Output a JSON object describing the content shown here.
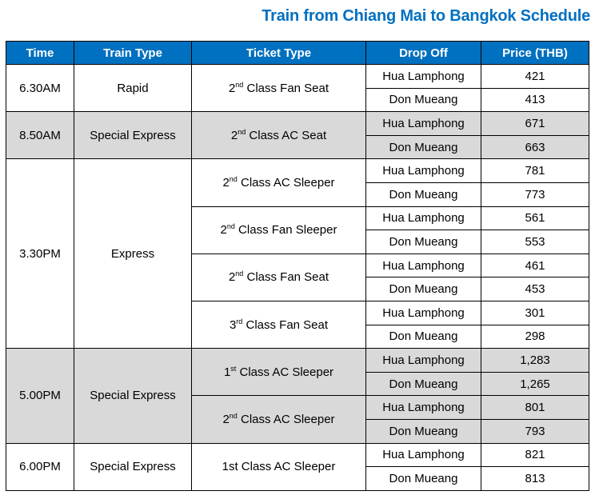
{
  "title": "Train from Chiang Mai to Bangkok Schedule",
  "headers": [
    "Time",
    "Train Type",
    "Ticket Type",
    "Drop Off",
    "Price (THB)"
  ],
  "colors": {
    "header": "#0070c0",
    "shade": "#d9d9d9"
  },
  "groups": [
    {
      "time": "6.30AM",
      "train": "Rapid",
      "shaded": false,
      "tickets": [
        {
          "ord": "2",
          "sup": "nd",
          "rest": " Class Fan Seat",
          "stops": [
            [
              "Hua Lamphong",
              "421"
            ],
            [
              "Don Mueang",
              "413"
            ]
          ]
        }
      ]
    },
    {
      "time": "8.50AM",
      "train": "Special Express",
      "shaded": true,
      "tickets": [
        {
          "ord": "2",
          "sup": "nd",
          "rest": " Class AC Seat",
          "stops": [
            [
              "Hua Lamphong",
              "671"
            ],
            [
              "Don Mueang",
              "663"
            ]
          ]
        }
      ]
    },
    {
      "time": "3.30PM",
      "train": "Express",
      "shaded": false,
      "tickets": [
        {
          "ord": "2",
          "sup": "nd",
          "rest": " Class AC Sleeper",
          "stops": [
            [
              "Hua Lamphong",
              "781"
            ],
            [
              "Don Mueang",
              "773"
            ]
          ]
        },
        {
          "ord": "2",
          "sup": "nd",
          "rest": " Class Fan Sleeper",
          "stops": [
            [
              "Hua Lamphong",
              "561"
            ],
            [
              "Don Mueang",
              "553"
            ]
          ]
        },
        {
          "ord": "2",
          "sup": "nd",
          "rest": " Class Fan Seat",
          "stops": [
            [
              "Hua Lamphong",
              "461"
            ],
            [
              "Don Mueang",
              "453"
            ]
          ]
        },
        {
          "ord": "3",
          "sup": "rd",
          "rest": " Class Fan Seat",
          "stops": [
            [
              "Hua Lamphong",
              "301"
            ],
            [
              "Don Mueang",
              "298"
            ]
          ]
        }
      ]
    },
    {
      "time": "5.00PM",
      "train": "Special Express",
      "shaded": true,
      "tickets": [
        {
          "ord": "1",
          "sup": "st",
          "rest": " Class AC Sleeper",
          "stops": [
            [
              "Hua Lamphong",
              "1,283"
            ],
            [
              "Don Mueang",
              "1,265"
            ]
          ]
        },
        {
          "ord": "2",
          "sup": "nd",
          "rest": " Class AC Sleeper",
          "stops": [
            [
              "Hua Lamphong",
              "801"
            ],
            [
              "Don Mueang",
              "793"
            ]
          ]
        }
      ]
    },
    {
      "time": "6.00PM",
      "train": "Special Express",
      "shaded": false,
      "tickets": [
        {
          "ord": "1st Class AC Sleeper",
          "sup": "",
          "rest": "",
          "stops": [
            [
              "Hua Lamphong",
              "821"
            ],
            [
              "Don Mueang",
              "813"
            ]
          ]
        }
      ]
    }
  ]
}
